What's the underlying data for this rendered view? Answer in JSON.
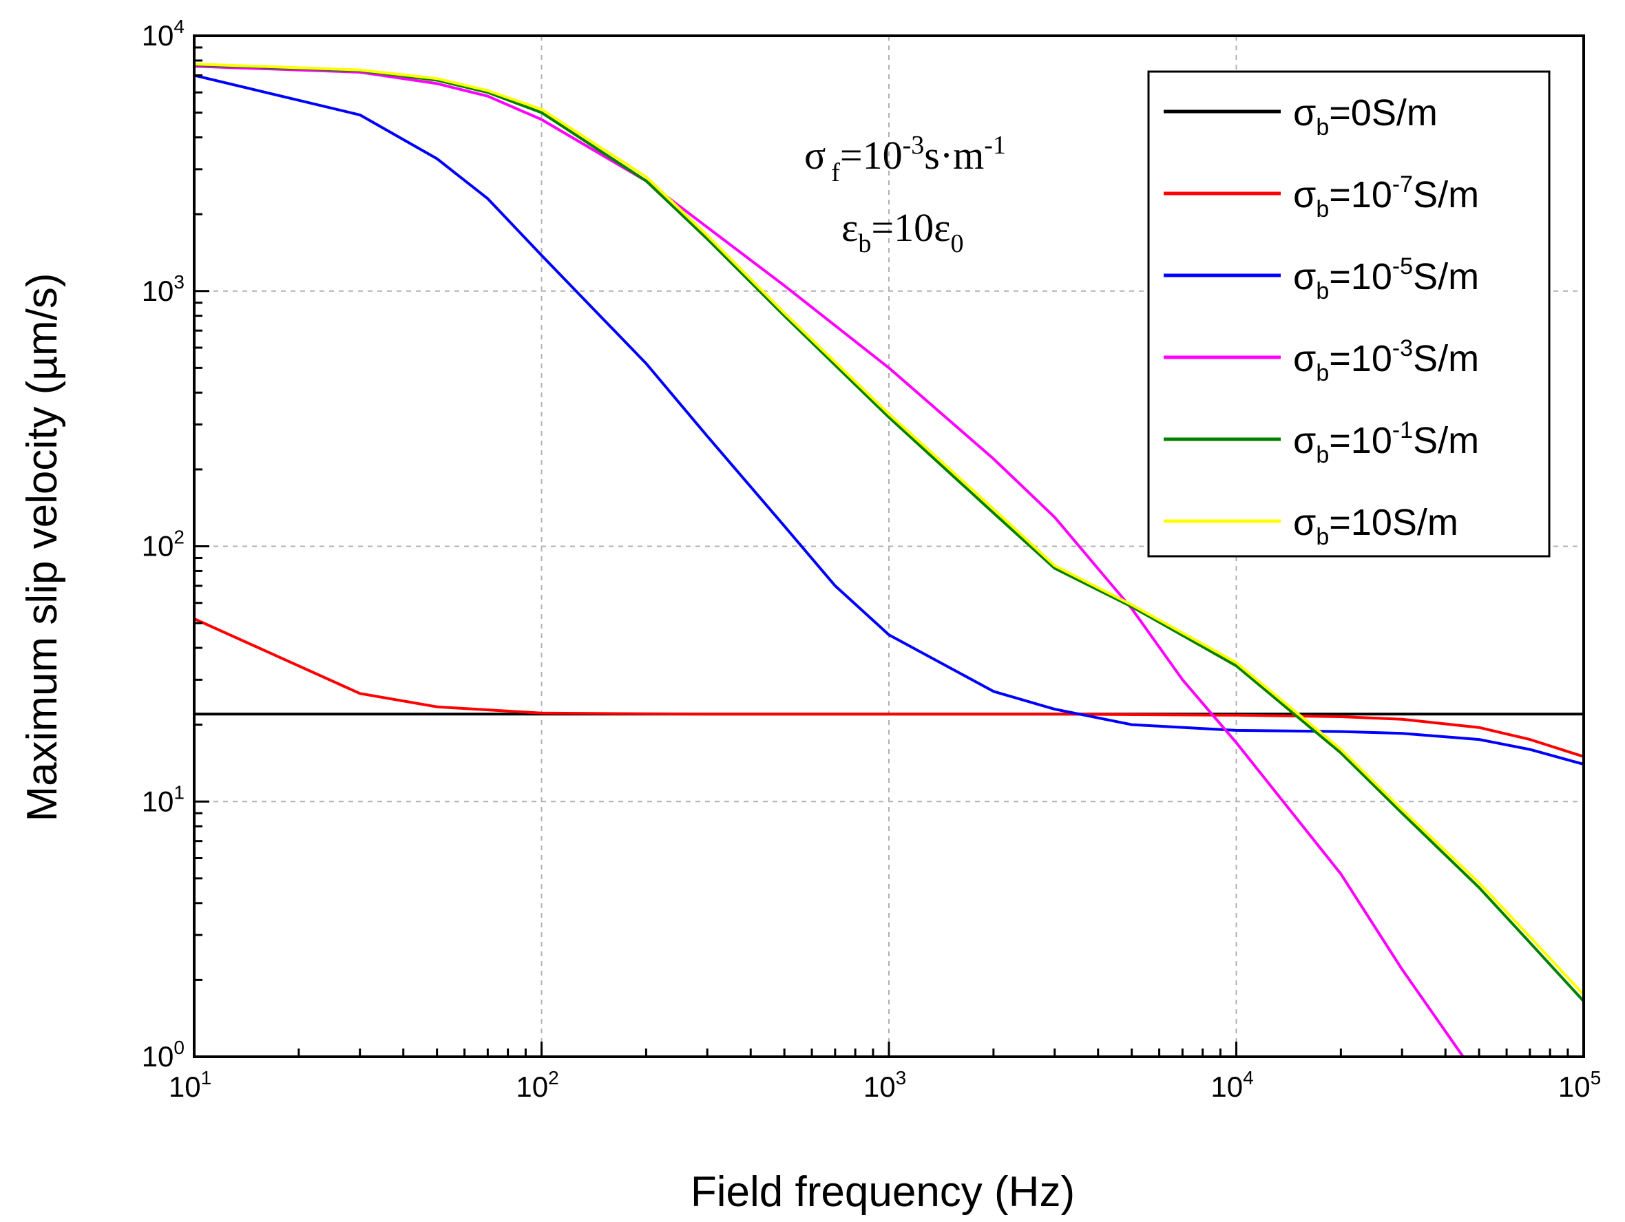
{
  "chart_data": {
    "type": "line",
    "xlabel": "Field frequency (Hz)",
    "ylabel": "Maximum slip velocity (µm/s)",
    "xscale": "log",
    "yscale": "log",
    "xlim": [
      10,
      100000
    ],
    "ylim": [
      1,
      10000
    ],
    "grid": true,
    "legend_position": "top-right",
    "x_ticks": [
      {
        "value": 10,
        "base": "10",
        "exp": "1"
      },
      {
        "value": 100,
        "base": "10",
        "exp": "2"
      },
      {
        "value": 1000,
        "base": "10",
        "exp": "3"
      },
      {
        "value": 10000,
        "base": "10",
        "exp": "4"
      },
      {
        "value": 100000,
        "base": "10",
        "exp": "5"
      }
    ],
    "y_ticks": [
      {
        "value": 1,
        "base": "10",
        "exp": "0"
      },
      {
        "value": 10,
        "base": "10",
        "exp": "1"
      },
      {
        "value": 100,
        "base": "10",
        "exp": "2"
      },
      {
        "value": 1000,
        "base": "10",
        "exp": "3"
      },
      {
        "value": 10000,
        "base": "10",
        "exp": "4"
      }
    ],
    "annotation": {
      "line1": {
        "sym": "σ",
        "sub": "f",
        "mid": "=10",
        "sup": "-3",
        "rest": "s·m",
        "sup2": "-1"
      },
      "line2": {
        "sym": "ε",
        "sub": "b",
        "mid": "=10ε",
        "sub2": "0"
      }
    },
    "series": [
      {
        "name": "sigma_b=0",
        "legend": {
          "sym": "σ",
          "sub": "b",
          "pre": "=",
          "base": "0",
          "sup": "",
          "unit": "S/m"
        },
        "color": "#000000",
        "x": [
          10,
          100000
        ],
        "y": [
          22,
          22
        ]
      },
      {
        "name": "sigma_b=1e-7",
        "legend": {
          "sym": "σ",
          "sub": "b",
          "pre": "=",
          "base": "10",
          "sup": "-7",
          "unit": "S/m"
        },
        "color": "#ff0000",
        "x": [
          10,
          30,
          50,
          100,
          300,
          1000,
          3000,
          10000,
          20000,
          30000,
          50000,
          70000,
          100000
        ],
        "y": [
          52,
          26.5,
          23.5,
          22.2,
          22,
          22,
          22,
          21.8,
          21.5,
          21,
          19.5,
          17.5,
          15
        ]
      },
      {
        "name": "sigma_b=1e-5",
        "legend": {
          "sym": "σ",
          "sub": "b",
          "pre": "=",
          "base": "10",
          "sup": "-5",
          "unit": "S/m"
        },
        "color": "#0000ff",
        "x": [
          10,
          30,
          50,
          70,
          100,
          200,
          300,
          500,
          700,
          1000,
          2000,
          3000,
          5000,
          10000,
          20000,
          30000,
          50000,
          70000,
          100000
        ],
        "y": [
          7000,
          4900,
          3300,
          2300,
          1380,
          520,
          270,
          120,
          70,
          45,
          27,
          23,
          20,
          19,
          18.8,
          18.5,
          17.5,
          16,
          14
        ]
      },
      {
        "name": "sigma_b=1e-3",
        "legend": {
          "sym": "σ",
          "sub": "b",
          "pre": "=",
          "base": "10",
          "sup": "-3",
          "unit": "S/m"
        },
        "color": "#ff00ff",
        "x": [
          10,
          30,
          50,
          70,
          100,
          200,
          500,
          1000,
          2000,
          3000,
          5000,
          7000,
          10000,
          20000,
          30000,
          45000
        ],
        "y": [
          7600,
          7200,
          6500,
          5800,
          4700,
          2700,
          1050,
          500,
          220,
          130,
          57,
          30,
          17,
          5.2,
          2.2,
          1
        ]
      },
      {
        "name": "sigma_b=1e-1",
        "legend": {
          "sym": "σ",
          "sub": "b",
          "pre": "=",
          "base": "10",
          "sup": "-1",
          "unit": "S/m"
        },
        "color": "#008000",
        "x": [
          10,
          30,
          50,
          70,
          100,
          200,
          300,
          500,
          1000,
          2000,
          3000,
          5000,
          10000,
          20000,
          30000,
          50000,
          70000,
          100000
        ],
        "y": [
          7700,
          7300,
          6700,
          6000,
          5000,
          2700,
          1600,
          800,
          320,
          135,
          82,
          58,
          34,
          15.5,
          9,
          4.6,
          2.8,
          1.65
        ]
      },
      {
        "name": "sigma_b=10",
        "legend": {
          "sym": "σ",
          "sub": "b",
          "pre": "=",
          "base": "10",
          "sup": "",
          "unit": "S/m"
        },
        "color": "#ffff00",
        "x": [
          10,
          30,
          50,
          70,
          100,
          200,
          300,
          500,
          1000,
          2000,
          3000,
          5000,
          10000,
          20000,
          30000,
          50000,
          70000,
          100000
        ],
        "y": [
          7750,
          7350,
          6800,
          6100,
          5150,
          2800,
          1650,
          820,
          330,
          140,
          84,
          59,
          35,
          16,
          9.3,
          4.8,
          2.95,
          1.75
        ]
      }
    ]
  }
}
